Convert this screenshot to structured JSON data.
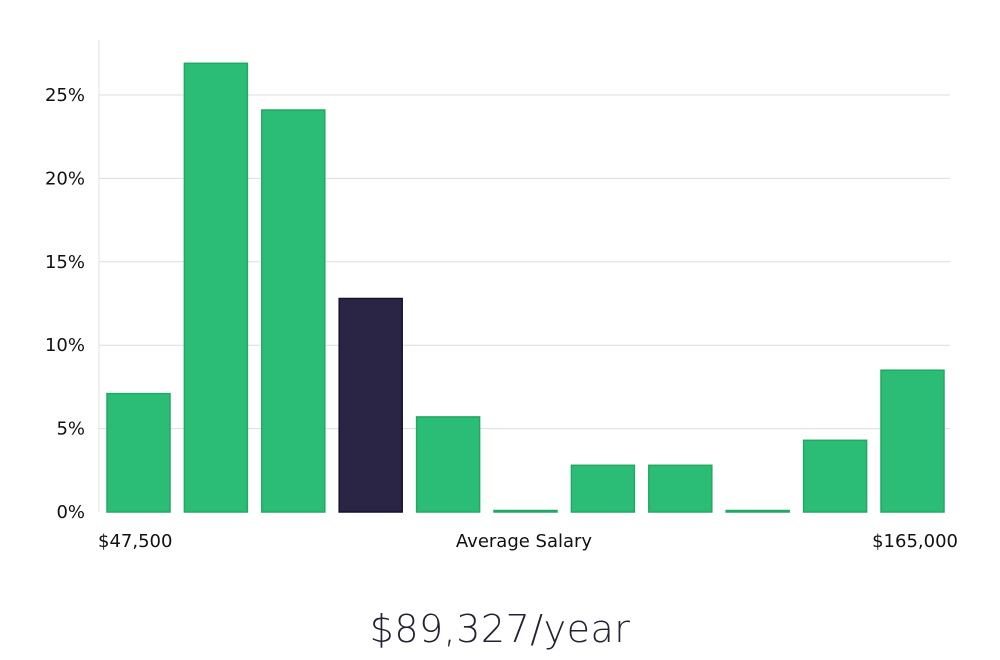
{
  "chart_data": {
    "type": "bar",
    "categories": [
      "1",
      "2",
      "3",
      "4",
      "5",
      "6",
      "7",
      "8",
      "9",
      "10",
      "11"
    ],
    "values": [
      7.1,
      26.9,
      24.1,
      12.8,
      5.7,
      0.05,
      2.8,
      2.8,
      0.05,
      4.3,
      8.5
    ],
    "highlight_index": 3,
    "y_ticks": [
      0,
      5,
      10,
      15,
      20,
      25
    ],
    "y_tick_labels": [
      "0%",
      "5%",
      "10%",
      "15%",
      "20%",
      "25%"
    ],
    "ylim": [
      0,
      28
    ],
    "xlabel": "Average Salary",
    "x_min_label": "$47,500",
    "x_max_label": "$165,000",
    "grid": true,
    "colors": {
      "bar": "#2bbd76",
      "bar_stroke": "#22a865",
      "highlight": "#2a2545",
      "highlight_stroke": "#15112b",
      "grid": "#dddddd",
      "axis": "#e2e2e2"
    }
  },
  "salary_readout": "$89,327/year"
}
